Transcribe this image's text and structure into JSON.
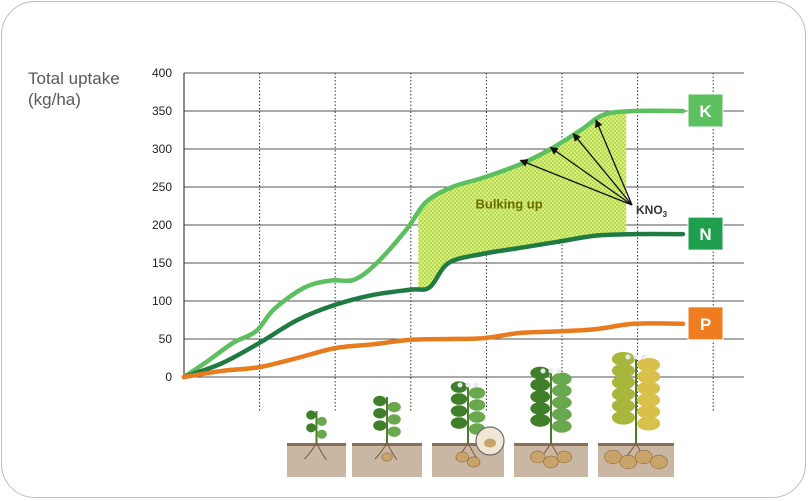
{
  "chart_data": {
    "type": "line",
    "ylabel": [
      "Total uptake",
      "(kg/ha)"
    ],
    "ylim": [
      0,
      400
    ],
    "yticks": [
      0,
      50,
      100,
      150,
      200,
      250,
      300,
      350,
      400
    ],
    "x_stages": 7,
    "grid": true,
    "series": [
      {
        "name": "K",
        "color": "#5cbf60",
        "badge": "#5cbf60",
        "points": [
          [
            0,
            0
          ],
          [
            0.3,
            20
          ],
          [
            0.65,
            45
          ],
          [
            0.95,
            60
          ],
          [
            1.2,
            90
          ],
          [
            1.6,
            118
          ],
          [
            1.95,
            127
          ],
          [
            2.25,
            128
          ],
          [
            2.55,
            150
          ],
          [
            2.95,
            195
          ],
          [
            3.2,
            230
          ],
          [
            3.55,
            250
          ],
          [
            3.95,
            262
          ],
          [
            4.45,
            280
          ],
          [
            4.85,
            300
          ],
          [
            5.25,
            325
          ],
          [
            5.55,
            345
          ],
          [
            5.95,
            350
          ],
          [
            6.6,
            350
          ]
        ]
      },
      {
        "name": "N",
        "color": "#1f7a44",
        "badge": "#1f9e4d",
        "points": [
          [
            0,
            0
          ],
          [
            0.5,
            18
          ],
          [
            1.0,
            45
          ],
          [
            1.5,
            75
          ],
          [
            2.0,
            95
          ],
          [
            2.5,
            108
          ],
          [
            3.0,
            115
          ],
          [
            3.25,
            118
          ],
          [
            3.5,
            150
          ],
          [
            3.95,
            162
          ],
          [
            4.45,
            170
          ],
          [
            4.95,
            178
          ],
          [
            5.45,
            186
          ],
          [
            5.95,
            188
          ],
          [
            6.6,
            188
          ]
        ]
      },
      {
        "name": "P",
        "color": "#e87b1e",
        "badge": "#ef7d1f",
        "points": [
          [
            0,
            0
          ],
          [
            0.5,
            8
          ],
          [
            1.0,
            13
          ],
          [
            1.5,
            25
          ],
          [
            2.0,
            38
          ],
          [
            2.5,
            43
          ],
          [
            3.0,
            49
          ],
          [
            3.5,
            50
          ],
          [
            3.95,
            51
          ],
          [
            4.45,
            58
          ],
          [
            4.95,
            60
          ],
          [
            5.45,
            63
          ],
          [
            5.95,
            70
          ],
          [
            6.6,
            70
          ]
        ]
      }
    ],
    "shaded_region": {
      "label": "Bulking up",
      "x_start": 3.1,
      "x_end": 5.85
    },
    "annotation": {
      "label": "KNO",
      "subscript": "3",
      "arrow_targets": [
        [
          4.45,
          285
        ],
        [
          4.85,
          302
        ],
        [
          5.15,
          320
        ],
        [
          5.45,
          338
        ]
      ]
    }
  }
}
